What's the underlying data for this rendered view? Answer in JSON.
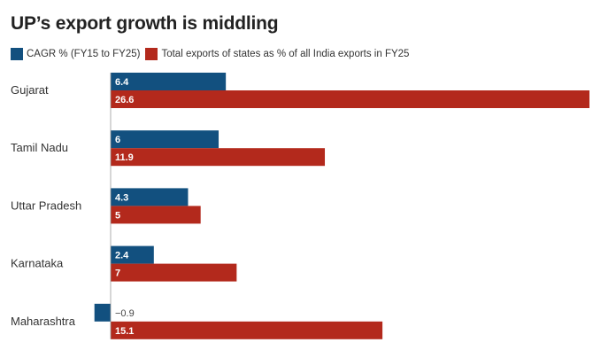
{
  "chart_data": {
    "type": "bar",
    "orientation": "horizontal",
    "title": "UP’s export growth is middling",
    "categories": [
      "Gujarat",
      "Tamil Nadu",
      "Uttar Pradesh",
      "Karnataka",
      "Maharashtra"
    ],
    "series": [
      {
        "name": "CAGR % (FY15 to FY25)",
        "color": "#12507f",
        "values": [
          6.4,
          6,
          4.3,
          2.4,
          -0.9
        ],
        "labels": [
          "6.4",
          "6",
          "4.3",
          "2.4",
          "−0.9"
        ]
      },
      {
        "name": "Total exports of states as % of all India exports in FY25",
        "color": "#b3291c",
        "values": [
          26.6,
          11.9,
          5,
          7,
          15.1
        ],
        "labels": [
          "26.6",
          "11.9",
          "5",
          "7",
          "15.1"
        ]
      }
    ],
    "xlim": [
      -1,
      26.6
    ],
    "grid": false,
    "legend_position": "top-left"
  }
}
